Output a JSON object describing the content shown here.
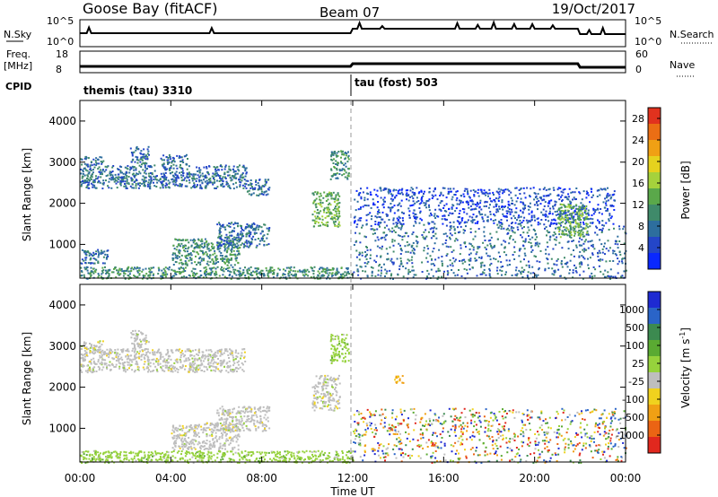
{
  "header": {
    "station": "Goose Bay (fitACF)",
    "beam": "Beam 07",
    "date": "19/Oct/2017"
  },
  "aux": {
    "nsky_label": "N.Sky",
    "nsearch_label": "N.Search",
    "nsky_ticks": [
      "10^5",
      "10^0"
    ],
    "nsearch_ticks": [
      "10^5",
      "10^0"
    ],
    "freq_label_1": "Freq.",
    "freq_label_2": "[MHz]",
    "freq_ticks": [
      "18",
      "8"
    ],
    "nave_label": "Nave",
    "nave_ticks": [
      "60",
      "0"
    ],
    "cpid_label": "CPID",
    "cpid_modes": [
      {
        "name": "themis (tau) 3310",
        "start_hour": 0
      },
      {
        "name": "tau (fost) 503",
        "start_hour": 12
      }
    ]
  },
  "xaxis": {
    "label": "Time UT",
    "ticks": [
      "00:00",
      "04:00",
      "08:00",
      "12:00",
      "16:00",
      "20:00",
      "00:00"
    ]
  },
  "chart_data": [
    {
      "type": "heatmap",
      "title": "",
      "xlabel": "Time UT",
      "ylabel": "Slant Range [km]",
      "xlim": [
        0,
        24
      ],
      "ylim": [
        180,
        4500
      ],
      "yticks": [
        1000,
        2000,
        3000,
        4000
      ],
      "colorbar": {
        "label": "Power [dB]",
        "ticks": [
          "4",
          "8",
          "12",
          "16",
          "20",
          "24",
          "28"
        ],
        "tick_values": [
          4,
          8,
          12,
          16,
          20,
          24,
          28
        ],
        "range": [
          0,
          30
        ],
        "colors": [
          "#0a28ff",
          "#2446c8",
          "#2d6e9e",
          "#3f8a6a",
          "#5aa84a",
          "#a5d23c",
          "#e6d21e",
          "#f0a014",
          "#eb6e14",
          "#e1321e"
        ]
      },
      "regions": [
        {
          "t_start": 0.0,
          "t_end": 7.3,
          "r_min": 2380,
          "r_max": 2950,
          "value": 8
        },
        {
          "t_start": 0.0,
          "t_end": 1.0,
          "r_min": 2950,
          "r_max": 3150,
          "value": 7
        },
        {
          "t_start": 2.2,
          "t_end": 3.0,
          "r_min": 2950,
          "r_max": 3400,
          "value": 7
        },
        {
          "t_start": 3.5,
          "t_end": 4.7,
          "r_min": 2950,
          "r_max": 3200,
          "value": 7
        },
        {
          "t_start": 7.3,
          "t_end": 8.3,
          "r_min": 2200,
          "r_max": 2600,
          "value": 6
        },
        {
          "t_start": 10.2,
          "t_end": 11.4,
          "r_min": 1450,
          "r_max": 2300,
          "value": 12
        },
        {
          "t_start": 11.0,
          "t_end": 11.8,
          "r_min": 2600,
          "r_max": 3300,
          "value": 9
        },
        {
          "t_start": 0.0,
          "t_end": 1.2,
          "r_min": 550,
          "r_max": 900,
          "value": 7
        },
        {
          "t_start": 4.0,
          "t_end": 7.0,
          "r_min": 500,
          "r_max": 1150,
          "value": 11
        },
        {
          "t_start": 6.0,
          "t_end": 8.3,
          "r_min": 950,
          "r_max": 1550,
          "value": 8
        },
        {
          "t_start": 0.0,
          "t_end": 12.0,
          "r_min": 180,
          "r_max": 470,
          "value": 10
        },
        {
          "t_start": 12.0,
          "t_end": 24.0,
          "r_min": 180,
          "r_max": 1500,
          "value": 6
        },
        {
          "t_start": 12.0,
          "t_end": 23.5,
          "r_min": 1500,
          "r_max": 2400,
          "value": 5
        },
        {
          "t_start": 21.0,
          "t_end": 22.3,
          "r_min": 1200,
          "r_max": 2000,
          "value": 12
        }
      ]
    },
    {
      "type": "heatmap",
      "title": "",
      "xlabel": "Time UT",
      "ylabel": "Slant Range [km]",
      "xlim": [
        0,
        24
      ],
      "ylim": [
        180,
        4500
      ],
      "yticks": [
        1000,
        2000,
        3000,
        4000
      ],
      "colorbar": {
        "label": "Velocity [m s^-1]",
        "ticks": [
          "1000",
          "500",
          "100",
          "25",
          "-25",
          "-100",
          "-500",
          "-1000"
        ],
        "colors": [
          "#1e2ad2",
          "#2a64c8",
          "#3c8a50",
          "#5aaa32",
          "#96d23c",
          "#bebebe",
          "#f0d21e",
          "#f0a014",
          "#eb6414",
          "#e1281e"
        ]
      },
      "regions": [
        {
          "t_start": 0.0,
          "t_end": 7.3,
          "r_min": 2380,
          "r_max": 2950,
          "value": "-25..25"
        },
        {
          "t_start": 0.0,
          "t_end": 1.0,
          "r_min": 2950,
          "r_max": 3150,
          "value": "-25..25"
        },
        {
          "t_start": 2.2,
          "t_end": 3.0,
          "r_min": 2950,
          "r_max": 3400,
          "value": "-25..25"
        },
        {
          "t_start": 10.2,
          "t_end": 11.4,
          "r_min": 1450,
          "r_max": 2300,
          "value": "-25..25"
        },
        {
          "t_start": 11.0,
          "t_end": 11.8,
          "r_min": 2600,
          "r_max": 3300,
          "value": "25..100"
        },
        {
          "t_start": 4.0,
          "t_end": 7.0,
          "r_min": 500,
          "r_max": 1150,
          "value": "-25..25"
        },
        {
          "t_start": 6.0,
          "t_end": 8.3,
          "r_min": 950,
          "r_max": 1550,
          "value": "-25..25"
        },
        {
          "t_start": 0.0,
          "t_end": 12.0,
          "r_min": 180,
          "r_max": 470,
          "value": "25..100"
        },
        {
          "t_start": 12.0,
          "t_end": 24.0,
          "r_min": 180,
          "r_max": 1500,
          "value": "mixed"
        },
        {
          "t_start": 13.8,
          "t_end": 14.2,
          "r_min": 2050,
          "r_max": 2300,
          "value": "-500..-100"
        }
      ]
    }
  ]
}
